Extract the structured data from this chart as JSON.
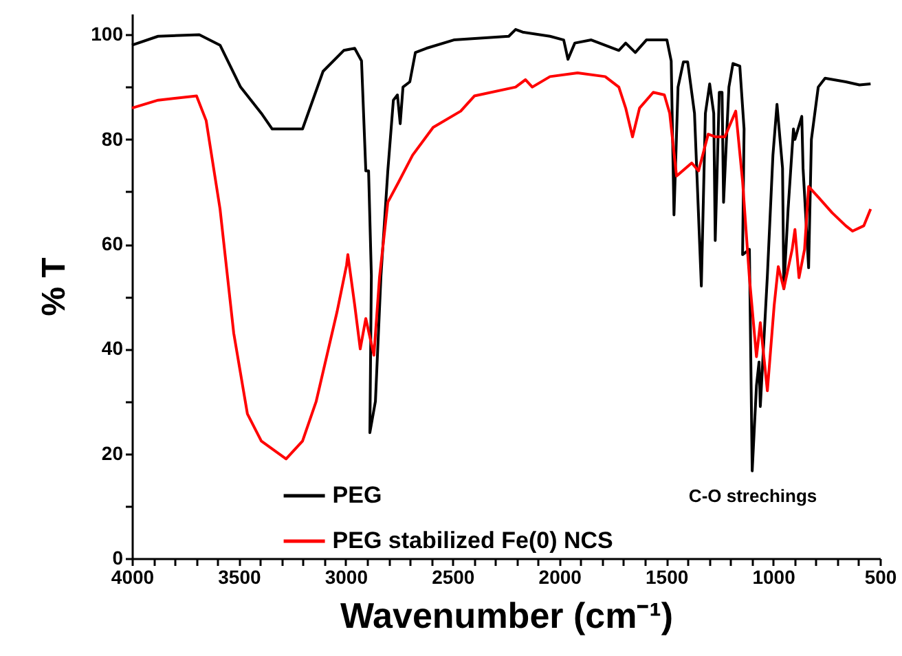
{
  "chart_data": {
    "type": "line",
    "xlabel": "Wavenumber (cm⁻¹)",
    "ylabel": "% T",
    "xlim": [
      4000,
      500
    ],
    "ylim": [
      0,
      104
    ],
    "xticks": [
      4000,
      {
        "value": 3900,
        "label": null
      },
      {
        "value": 3800,
        "label": null
      },
      {
        "value": 3700,
        "label": null
      },
      {
        "value": 3600,
        "label": null
      },
      3500,
      {
        "value": 3400,
        "label": null
      },
      {
        "value": 3300,
        "label": null
      },
      {
        "value": 3200,
        "label": null
      },
      {
        "value": 3100,
        "label": null
      },
      3000,
      {
        "value": 2900,
        "label": null
      },
      {
        "value": 2800,
        "label": null
      },
      {
        "value": 2700,
        "label": null
      },
      {
        "value": 2600,
        "label": null
      },
      2500,
      {
        "value": 2400,
        "label": null
      },
      {
        "value": 2300,
        "label": null
      },
      {
        "value": 2200,
        "label": null
      },
      {
        "value": 2100,
        "label": null
      },
      2000,
      {
        "value": 1900,
        "label": null
      },
      {
        "value": 1800,
        "label": null
      },
      {
        "value": 1700,
        "label": null
      },
      {
        "value": 1600,
        "label": null
      },
      1500,
      {
        "value": 1400,
        "label": null
      },
      {
        "value": 1300,
        "label": null
      },
      {
        "value": 1200,
        "label": null
      },
      {
        "value": 1100,
        "label": null
      },
      1000,
      {
        "value": 900,
        "label": null
      },
      {
        "value": 800,
        "label": null
      },
      {
        "value": 700,
        "label": null
      },
      {
        "value": 600,
        "label": null
      },
      500
    ],
    "yticks": [
      0,
      {
        "value": 10,
        "label": null
      },
      20,
      {
        "value": 30,
        "label": null
      },
      40,
      {
        "value": 50,
        "label": null
      },
      60,
      {
        "value": 70,
        "label": null
      },
      80,
      {
        "value": 90,
        "label": null
      },
      100
    ],
    "legend": "bottom",
    "grid": false,
    "marker": "none",
    "line_style": "solid",
    "annotations": [
      "C-O strechings"
    ],
    "series": [
      {
        "name": "PEG",
        "color": "#000000",
        "x": [
          4000,
          3878,
          3685,
          3588,
          3492,
          3395,
          3344,
          3202,
          3106,
          3009,
          2958,
          2926,
          2906,
          2893,
          2880,
          2887,
          2861,
          2835,
          2803,
          2777,
          2758,
          2745,
          2732,
          2700,
          2674,
          2623,
          2494,
          2237,
          2205,
          2172,
          2044,
          1980,
          1960,
          1928,
          1851,
          1722,
          1690,
          1645,
          1593,
          1497,
          1477,
          1464,
          1445,
          1420,
          1400,
          1368,
          1336,
          1317,
          1297,
          1278,
          1271,
          1252,
          1239,
          1232,
          1207,
          1188,
          1156,
          1136,
          1143,
          1111,
          1098,
          1078,
          1066,
          1060,
          1027,
          1001,
          982,
          956,
          950,
          930,
          905,
          898,
          866,
          860,
          834,
          821,
          789,
          757,
          660,
          596,
          544
        ],
        "values": [
          98,
          99.7,
          100,
          98,
          90,
          85,
          82,
          82,
          93,
          97,
          97.4,
          95,
          74,
          74,
          54,
          24,
          30,
          54,
          74,
          87.5,
          88.5,
          83,
          90,
          91,
          96.6,
          97.4,
          99,
          99.7,
          101,
          100.5,
          99.7,
          99,
          95.3,
          98.4,
          99,
          97,
          98.4,
          96.6,
          99,
          99,
          95,
          65.6,
          90,
          94.8,
          94.8,
          85,
          52,
          85,
          90.6,
          85,
          60.7,
          89,
          89,
          68,
          90,
          94.5,
          94,
          82,
          58,
          59,
          16.7,
          33,
          37.5,
          29,
          54,
          77,
          86.7,
          74.5,
          51.5,
          66.7,
          82,
          80,
          84.4,
          74.5,
          55.5,
          80,
          90,
          91.7,
          91,
          90.4,
          90.6
        ]
      },
      {
        "name": "PEG stabilized Fe(0) NCS",
        "color": "#ff0000",
        "x": [
          4000,
          3878,
          3698,
          3653,
          3588,
          3524,
          3460,
          3395,
          3279,
          3202,
          3138,
          3041,
          2996,
          2990,
          2958,
          2932,
          2906,
          2868,
          2842,
          2803,
          2752,
          2687,
          2591,
          2462,
          2398,
          2205,
          2159,
          2127,
          2044,
          1915,
          1786,
          1722,
          1690,
          1658,
          1625,
          1561,
          1509,
          1484,
          1452,
          1381,
          1349,
          1304,
          1271,
          1226,
          1175,
          1143,
          1111,
          1078,
          1060,
          1027,
          995,
          976,
          950,
          911,
          898,
          879,
          853,
          834,
          789,
          724,
          660,
          628,
          576,
          544
        ],
        "values": [
          86,
          87.5,
          88.3,
          83.6,
          66.7,
          43,
          27.6,
          22.4,
          19,
          22.4,
          30,
          47,
          56,
          58,
          48.4,
          40,
          45.8,
          38.8,
          53.6,
          68,
          71.9,
          77,
          82.3,
          85.4,
          88.3,
          90,
          91.4,
          90,
          92,
          92.7,
          92,
          90,
          86,
          80.5,
          86,
          89,
          88.5,
          85,
          73,
          75.5,
          74,
          81,
          80.5,
          80.5,
          85.4,
          72,
          53.6,
          38.5,
          45,
          32,
          48.4,
          55.7,
          51.5,
          59,
          62.8,
          53.6,
          59,
          71,
          69,
          66,
          63.5,
          62.5,
          63.5,
          66.7
        ]
      }
    ]
  }
}
